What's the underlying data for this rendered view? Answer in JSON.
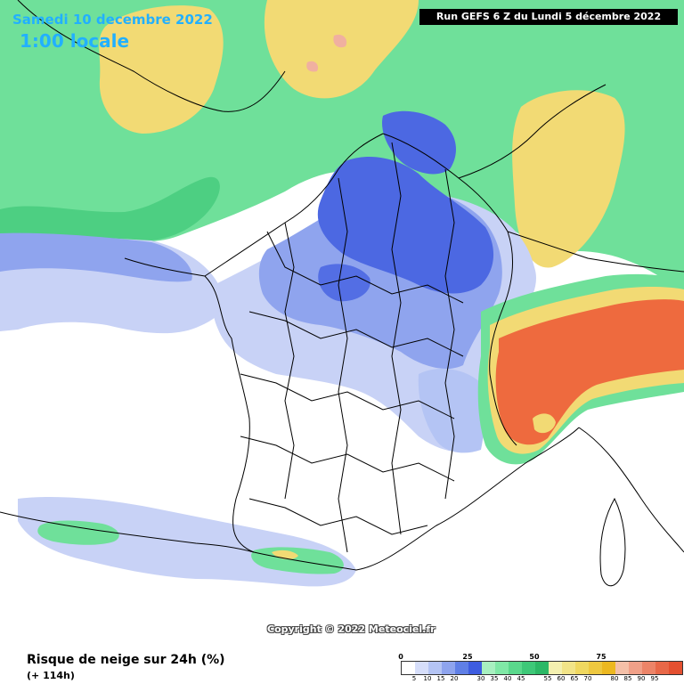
{
  "map": {
    "date_label": "Samedi 10 decembre 2022",
    "time_label": "1:00 locale",
    "run_label": "Run GEFS 6 Z du Lundi 5 décembre 2022",
    "copyright": "Copyright © 2022 Meteociel.fr",
    "variable_title": "Risque de neige sur 24h (%)",
    "lead_time": "(+ 114h)",
    "region": "France"
  },
  "legend": {
    "major_labels": [
      "0",
      "25",
      "50",
      "75"
    ],
    "minor_labels": [
      "5",
      "10",
      "15",
      "20",
      "30",
      "35",
      "40",
      "45",
      "55",
      "60",
      "65",
      "70",
      "80",
      "85",
      "90",
      "95"
    ],
    "colors": [
      "#ffffff",
      "#d6defa",
      "#b4c4f4",
      "#8ea4ee",
      "#5f7fe6",
      "#3d5ce0",
      "#a8f0c0",
      "#80e8a6",
      "#5ad88c",
      "#3ec878",
      "#2cb866",
      "#f4f0b0",
      "#f2e488",
      "#f0d860",
      "#eec840",
      "#ecb820",
      "#f4c0a8",
      "#f0a088",
      "#ec8468",
      "#e86848",
      "#e45030"
    ]
  },
  "colors": {
    "land": "#ffffff",
    "blue_light": "#c8d2f6",
    "blue_mid": "#8fa4ee",
    "blue_dark": "#4c68e2",
    "green": "#6ce098",
    "yellow": "#f2da74",
    "orange": "#ee6a3e",
    "border": "#000000"
  }
}
